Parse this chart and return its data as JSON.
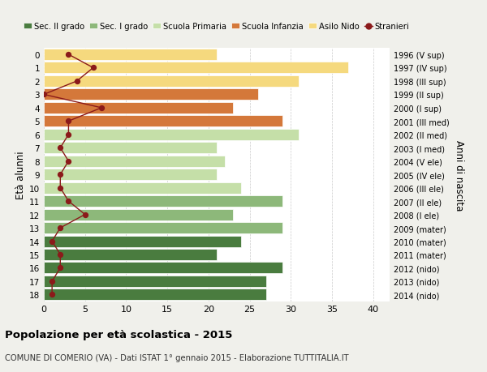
{
  "ages": [
    18,
    17,
    16,
    15,
    14,
    13,
    12,
    11,
    10,
    9,
    8,
    7,
    6,
    5,
    4,
    3,
    2,
    1,
    0
  ],
  "years": [
    "1996 (V sup)",
    "1997 (IV sup)",
    "1998 (III sup)",
    "1999 (II sup)",
    "2000 (I sup)",
    "2001 (III med)",
    "2002 (II med)",
    "2003 (I med)",
    "2004 (V ele)",
    "2005 (IV ele)",
    "2006 (III ele)",
    "2007 (II ele)",
    "2008 (I ele)",
    "2009 (mater)",
    "2010 (mater)",
    "2011 (mater)",
    "2012 (nido)",
    "2013 (nido)",
    "2014 (nido)"
  ],
  "bar_values": [
    27,
    27,
    29,
    21,
    24,
    29,
    23,
    29,
    24,
    21,
    22,
    21,
    31,
    29,
    23,
    26,
    31,
    37,
    21
  ],
  "bar_colors": [
    "#4a7c3f",
    "#4a7c3f",
    "#4a7c3f",
    "#4a7c3f",
    "#4a7c3f",
    "#8db87a",
    "#8db87a",
    "#8db87a",
    "#c5dfa8",
    "#c5dfa8",
    "#c5dfa8",
    "#c5dfa8",
    "#c5dfa8",
    "#d4783a",
    "#d4783a",
    "#d4783a",
    "#f5d97e",
    "#f5d97e",
    "#f5d97e"
  ],
  "stranieri_values": [
    1,
    1,
    2,
    2,
    1,
    2,
    5,
    3,
    2,
    2,
    3,
    2,
    3,
    3,
    7,
    0,
    4,
    6,
    3
  ],
  "legend_labels": [
    "Sec. II grado",
    "Sec. I grado",
    "Scuola Primaria",
    "Scuola Infanzia",
    "Asilo Nido",
    "Stranieri"
  ],
  "legend_colors": [
    "#4a7c3f",
    "#8db87a",
    "#c5dfa8",
    "#d4783a",
    "#f5d97e",
    "#8b1a1a"
  ],
  "xlabel_main": "Popolazione per età scolastica - 2015",
  "xlabel_sub": "COMUNE DI COMERIO (VA) - Dati ISTAT 1° gennaio 2015 - Elaborazione TUTTITALIA.IT",
  "ylabel_left": "Età alunni",
  "ylabel_right": "Anni di nascita",
  "xlim": [
    0,
    42
  ],
  "bg_color": "#f0f0eb",
  "plot_bg_color": "#ffffff",
  "grid_color": "#cccccc"
}
